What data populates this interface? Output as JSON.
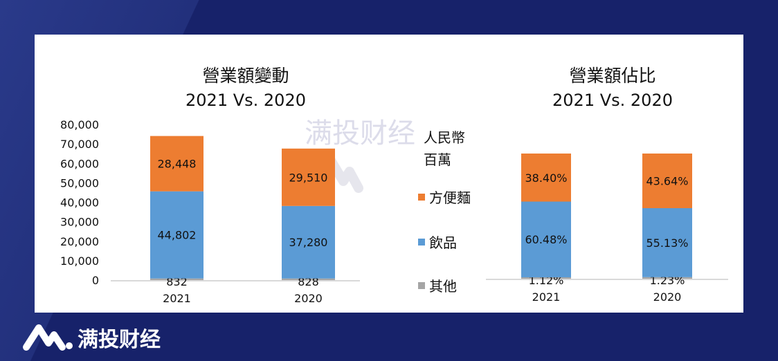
{
  "colors": {
    "background": "#17226a",
    "noodles": "#ed7d31",
    "beverage": "#5b9bd5",
    "other": "#a5a5a5"
  },
  "watermark": "满投财经",
  "brand": {
    "name": "满投财经",
    "icon": "mantou-logo-icon"
  },
  "legend": {
    "unit_line1": "人民幣",
    "unit_line2": "百萬",
    "items": [
      {
        "label": "方便麵",
        "color": "#ed7d31"
      },
      {
        "label": "飲品",
        "color": "#5b9bd5"
      },
      {
        "label": "其他",
        "color": "#a5a5a5"
      }
    ],
    "placement": "center"
  },
  "chart_data": [
    {
      "type": "bar",
      "stacked": true,
      "title": "營業額變動",
      "subtitle": "2021 Vs. 2020",
      "categories": [
        "2021",
        "2020"
      ],
      "ylim": [
        0,
        80000
      ],
      "yticks": [
        "0",
        "10,000",
        "20,000",
        "30,000",
        "40,000",
        "50,000",
        "60,000",
        "70,000",
        "80,000"
      ],
      "series": [
        {
          "name": "其他",
          "values": [
            832,
            828
          ],
          "labels": [
            "832",
            "828"
          ]
        },
        {
          "name": "飲品",
          "values": [
            44802,
            37280
          ],
          "labels": [
            "44,802",
            "37,280"
          ]
        },
        {
          "name": "方便麵",
          "values": [
            28448,
            29510
          ],
          "labels": [
            "28,448",
            "29,510"
          ]
        }
      ]
    },
    {
      "type": "bar",
      "stacked": true,
      "title": "營業額佔比",
      "subtitle": "2021 Vs. 2020",
      "categories": [
        "2021",
        "2020"
      ],
      "ylim": [
        0,
        100
      ],
      "series": [
        {
          "name": "其他",
          "values": [
            1.12,
            1.23
          ],
          "labels": [
            "1.12%",
            "1.23%"
          ]
        },
        {
          "name": "飲品",
          "values": [
            60.48,
            55.13
          ],
          "labels": [
            "60.48%",
            "55.13%"
          ]
        },
        {
          "name": "方便麵",
          "values": [
            38.4,
            43.64
          ],
          "labels": [
            "38.40%",
            "43.64%"
          ]
        }
      ]
    }
  ]
}
